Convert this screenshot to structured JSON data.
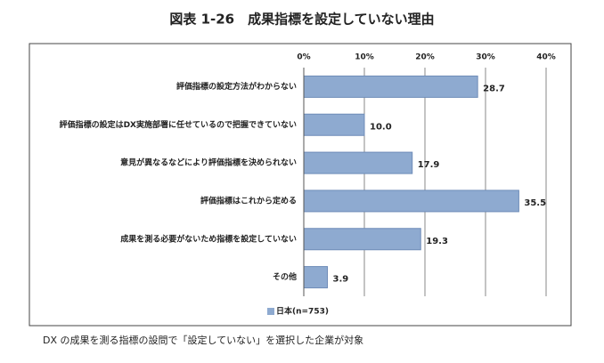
{
  "chart_data": {
    "type": "hbar",
    "title": "図表 1-26　成果指標を設定していない理由",
    "categories": [
      "評価指標の設定方法がわからない",
      "評価指標の設定はDX実施部署に任せているので把握できていない",
      "意見が異なるなどにより評価指標を決められない",
      "評価指標はこれから定める",
      "成果を測る必要がないため指標を設定していない",
      "その他"
    ],
    "series": [
      {
        "name": "日本(n=753)",
        "color": "#8eaad0",
        "values": [
          28.7,
          10.0,
          17.9,
          35.5,
          19.3,
          3.9
        ],
        "value_labels": [
          "28.7",
          "10.0",
          "17.9",
          "35.5",
          "19.3",
          "3.9"
        ]
      }
    ],
    "xlim": [
      0,
      40
    ],
    "xticks": [
      {
        "value": 0,
        "label": "0%"
      },
      {
        "value": 10,
        "label": "10%"
      },
      {
        "value": 20,
        "label": "20%"
      },
      {
        "value": 30,
        "label": "30%"
      },
      {
        "value": 40,
        "label": "40%"
      }
    ],
    "grid": true,
    "legend": "bottom",
    "footnote": "DX の成果を測る指標の設問で「設定していない」を選択した企業が対象"
  }
}
